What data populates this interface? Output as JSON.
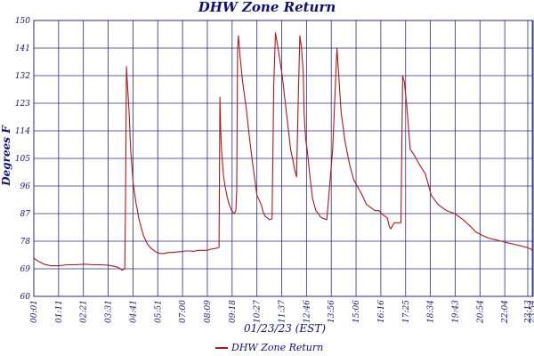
{
  "chart_data": {
    "type": "line",
    "title": "DHW Zone Return",
    "xlabel": "01/23/23 (EST)",
    "ylabel": "Degrees F",
    "ylim": [
      60,
      150
    ],
    "yticks": [
      60,
      69,
      78,
      87,
      96,
      105,
      114,
      123,
      132,
      141,
      150
    ],
    "grid": true,
    "legend_position": "bottom-center",
    "line_color": "#b01818",
    "grid_color": "#2a2a8a",
    "xtick_labels": [
      "00:01",
      "01:11",
      "02:21",
      "03:31",
      "04:41",
      "05:51",
      "07:00",
      "08:09",
      "09:18",
      "10:27",
      "11:37",
      "12:46",
      "13:56",
      "15:06",
      "16:16",
      "17:25",
      "18:34",
      "19:43",
      "20:54",
      "22:04",
      "23:13",
      "23:54"
    ],
    "series": [
      {
        "name": "DHW Zone Return",
        "x": [
          0,
          5,
          12,
          20,
          30,
          40,
          50,
          60,
          70,
          80,
          90,
          95,
          100,
          105,
          108,
          109,
          110,
          111,
          113,
          115,
          118,
          121,
          125,
          130,
          135,
          140,
          145,
          150,
          155,
          160,
          165,
          170,
          175,
          180,
          185,
          190,
          195,
          200,
          205,
          210,
          215,
          218,
          220,
          221,
          222,
          223,
          224,
          225,
          227,
          230,
          232,
          235,
          238,
          240,
          241,
          242,
          243,
          245,
          248,
          252,
          256,
          260,
          265,
          270,
          272,
          273,
          275,
          278,
          280,
          283,
          285,
          287,
          290,
          295,
          300,
          305,
          308,
          310,
          312,
          314,
          316,
          318,
          320,
          321,
          322,
          323,
          325,
          328,
          331,
          333,
          335,
          338,
          340,
          343,
          348,
          355,
          360,
          365,
          370,
          375,
          380,
          390,
          395,
          400,
          405,
          410,
          413,
          415,
          418,
          420,
          422,
          424,
          426,
          428,
          430,
          432,
          434,
          436,
          438,
          440,
          443,
          447,
          452,
          458,
          465,
          472,
          480,
          490,
          500,
          510,
          518,
          525,
          532,
          540,
          548,
          555,
          562,
          570,
          578,
          585,
          590,
          592,
          593
        ],
        "y": [
          72.5,
          71.5,
          70.5,
          70,
          70,
          70.3,
          70.3,
          70.5,
          70.3,
          70.3,
          70.1,
          69.8,
          69.5,
          68.5,
          69,
          93,
          135,
          130,
          121,
          108,
          97,
          91,
          85,
          80,
          77,
          75.5,
          74.5,
          74,
          74,
          74.3,
          74.3,
          74.5,
          74.6,
          74.8,
          74.8,
          74.7,
          75,
          75,
          75,
          75.4,
          75.6,
          75.8,
          76,
          125,
          114,
          107,
          104,
          100,
          96,
          92,
          90,
          88,
          87,
          88,
          95,
          140,
          145,
          138,
          130,
          122,
          112,
          103,
          93,
          90,
          88,
          87,
          86,
          85.5,
          85,
          85.3,
          129,
          146,
          141,
          132,
          120,
          108,
          104,
          101,
          99,
          124,
          145,
          141,
          133,
          120,
          115,
          111,
          107,
          99,
          92,
          90,
          88,
          87,
          86,
          85.5,
          85,
          108,
          141,
          120,
          110,
          103,
          98,
          93,
          90,
          89,
          88,
          88,
          87,
          86.5,
          86,
          85.5,
          83,
          82,
          83,
          84,
          84,
          84,
          84,
          84,
          132,
          130,
          122,
          108,
          106,
          103,
          100,
          93,
          90,
          88,
          87,
          85,
          83,
          81,
          80,
          79,
          78.5,
          78,
          77.5,
          77,
          76.5,
          76,
          75.5,
          75,
          75
        ]
      }
    ]
  }
}
